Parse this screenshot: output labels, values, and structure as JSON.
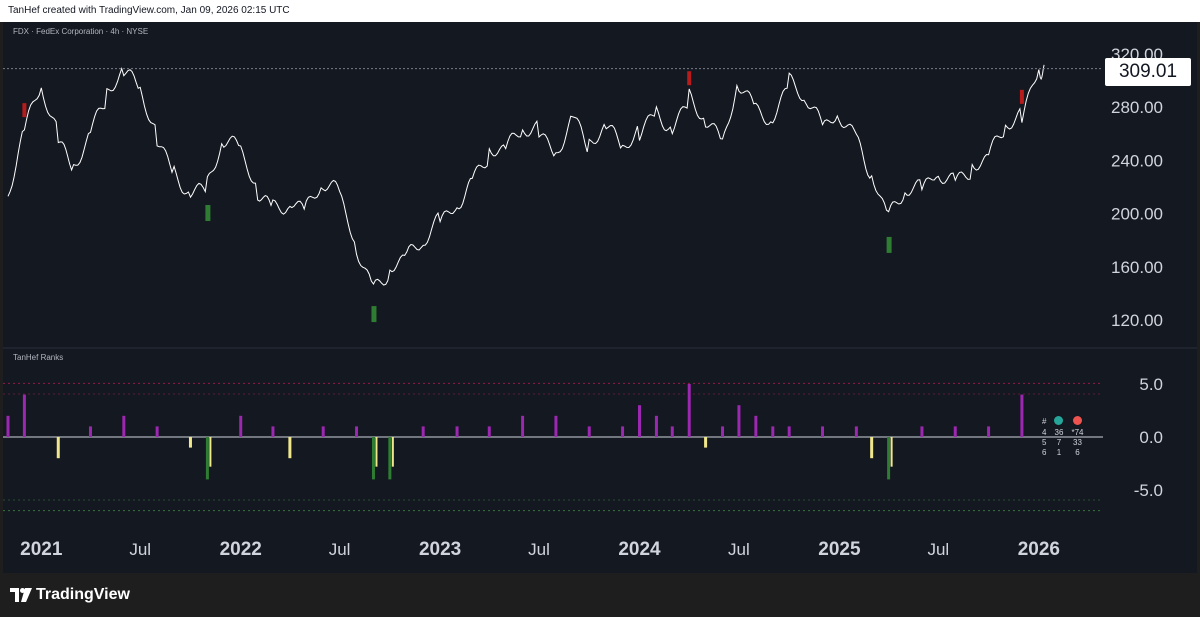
{
  "header": {
    "credit": "TanHef created with TradingView.com, Jan 09, 2026 02:15 UTC"
  },
  "footer": {
    "brand": "TradingView"
  },
  "colors": {
    "background": "#141821",
    "price_line": "#ffffff",
    "positive_bar": "#9c27b0",
    "negative_bar": "#f0e68c",
    "extreme_negative_bar": "#2e7d32",
    "sell_signal": "#b71c1c",
    "buy_signal": "#2e7d32",
    "dotted_price_line": "#787b86",
    "upper_band": "#e91e63",
    "lower_band": "#4caf50"
  },
  "chart_data": [
    {
      "type": "line",
      "title": "FDX · FedEx Corporation · 4h · NYSE",
      "y_ticks": [
        120,
        160,
        200,
        240,
        280,
        320
      ],
      "y_tick_labels": [
        "120.00",
        "160.00",
        "200.00",
        "240.00",
        "280.00",
        "320.00"
      ],
      "x_tick_labels": [
        "2021",
        "Jul",
        "2022",
        "Jul",
        "2023",
        "Jul",
        "2024",
        "Jul",
        "2025",
        "Jul",
        "2026"
      ],
      "last_value": 309.01,
      "last_value_label": "309.01",
      "ylim": [
        100,
        340
      ],
      "x": [
        "2020-11",
        "2020-12",
        "2021-01",
        "2021-02",
        "2021-03",
        "2021-04",
        "2021-05",
        "2021-06",
        "2021-07",
        "2021-08",
        "2021-09",
        "2021-10",
        "2021-11",
        "2021-12",
        "2022-01",
        "2022-02",
        "2022-03",
        "2022-04",
        "2022-05",
        "2022-06",
        "2022-07",
        "2022-08",
        "2022-09",
        "2022-10",
        "2022-11",
        "2022-12",
        "2023-01",
        "2023-02",
        "2023-03",
        "2023-04",
        "2023-05",
        "2023-06",
        "2023-07",
        "2023-08",
        "2023-09",
        "2023-10",
        "2023-11",
        "2023-12",
        "2024-01",
        "2024-02",
        "2024-03",
        "2024-04",
        "2024-05",
        "2024-06",
        "2024-07",
        "2024-08",
        "2024-09",
        "2024-10",
        "2024-11",
        "2024-12",
        "2025-01",
        "2025-02",
        "2025-03",
        "2025-04",
        "2025-05",
        "2025-06",
        "2025-07",
        "2025-08",
        "2025-09",
        "2025-10",
        "2025-11",
        "2025-12",
        "2026-01"
      ],
      "values": [
        210,
        262,
        295,
        258,
        236,
        262,
        288,
        306,
        293,
        258,
        232,
        215,
        220,
        254,
        248,
        218,
        206,
        208,
        202,
        222,
        215,
        176,
        144,
        158,
        166,
        178,
        195,
        208,
        226,
        246,
        247,
        262,
        262,
        246,
        275,
        250,
        265,
        248,
        262,
        278,
        264,
        286,
        268,
        252,
        300,
        280,
        272,
        298,
        285,
        264,
        276,
        258,
        230,
        196,
        216,
        218,
        232,
        226,
        235,
        242,
        264,
        272,
        309.01
      ],
      "sell_signals": [
        "2020-12",
        "2024-04",
        "2025-12"
      ],
      "buy_signals": [
        "2021-11",
        "2022-09",
        "2025-04"
      ]
    },
    {
      "type": "bar",
      "title": "TanHef Ranks",
      "y_ticks": [
        5,
        0,
        -5
      ],
      "y_tick_labels": [
        "5.0",
        "0.0",
        "-5.0"
      ],
      "ylim": [
        -7,
        7
      ],
      "upper_band": 6,
      "lower_band": -6,
      "x": [
        "2020-11",
        "2020-12",
        "2021-02",
        "2021-04",
        "2021-06",
        "2021-08",
        "2021-10",
        "2021-11",
        "2022-01",
        "2022-03",
        "2022-04",
        "2022-06",
        "2022-08",
        "2022-09",
        "2022-10",
        "2022-12",
        "2023-02",
        "2023-04",
        "2023-06",
        "2023-08",
        "2023-10",
        "2023-12",
        "2024-01",
        "2024-02",
        "2024-03",
        "2024-04",
        "2024-05",
        "2024-06",
        "2024-07",
        "2024-08",
        "2024-09",
        "2024-10",
        "2024-12",
        "2025-02",
        "2025-03",
        "2025-04",
        "2025-06",
        "2025-08",
        "2025-10",
        "2025-12"
      ],
      "values": [
        2,
        4,
        -2,
        1,
        2,
        1,
        -1,
        -4,
        2,
        1,
        -2,
        1,
        1,
        -4,
        -4,
        1,
        1,
        1,
        2,
        2,
        1,
        1,
        3,
        2,
        1,
        5,
        -1,
        1,
        3,
        2,
        1,
        1,
        1,
        1,
        -2,
        -4,
        1,
        1,
        1,
        4
      ]
    }
  ],
  "ranks_table": {
    "header": [
      "#",
      "green-dot",
      "red-dot"
    ],
    "rows": [
      [
        "4",
        "36",
        "*74"
      ],
      [
        "5",
        "7",
        "33"
      ],
      [
        "6",
        "1",
        "6"
      ]
    ]
  }
}
